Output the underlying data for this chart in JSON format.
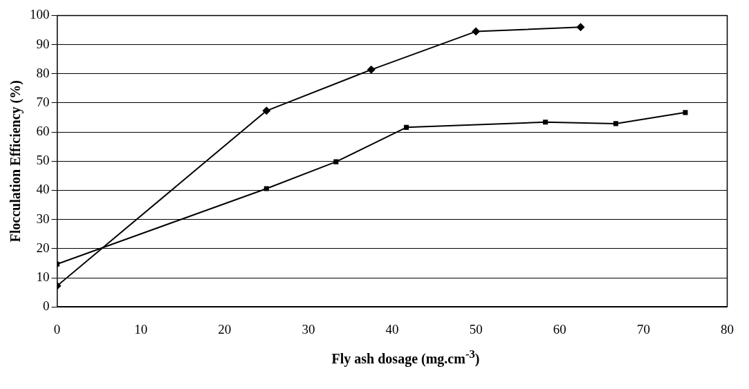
{
  "chart_data": {
    "type": "line",
    "xlabel": "Fly ash dosage (mg.cm$^{-3}$)",
    "ylabel": "Flocculation Efficiency (%)",
    "xlim": [
      0,
      80
    ],
    "xticks": [
      0,
      10,
      20,
      30,
      40,
      50,
      60,
      70,
      80
    ],
    "ylim": [
      0,
      100
    ],
    "yticks": [
      0,
      10,
      20,
      30,
      40,
      50,
      60,
      70,
      80,
      90,
      100
    ],
    "grid": "y",
    "legend": false,
    "line_style": "solid",
    "series": [
      {
        "color": "#000000",
        "marker": "diamond",
        "x": [
          0,
          25,
          37.5,
          50,
          62.5
        ],
        "values": [
          7.2,
          67.3,
          81.4,
          94.5,
          96
        ]
      },
      {
        "color": "#000000",
        "marker": "square",
        "x": [
          0,
          25,
          33.3,
          41.7,
          58.3,
          66.7,
          75
        ],
        "values": [
          14.7,
          40.6,
          49.8,
          61.6,
          63.4,
          62.9,
          66.7
        ]
      }
    ]
  }
}
